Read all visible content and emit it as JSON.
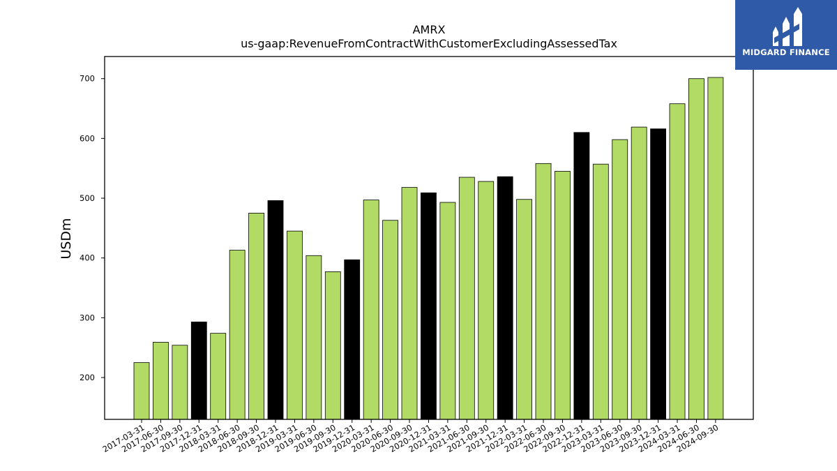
{
  "chart_data": {
    "type": "bar",
    "title": "AMRX",
    "subtitle": "us-gaap:RevenueFromContractWithCustomerExcludingAssessedTax",
    "xlabel": "",
    "ylabel": "USDm",
    "ylim": [
      130,
      737
    ],
    "yticks": [
      200,
      300,
      400,
      500,
      600,
      700
    ],
    "grid": false,
    "colors": {
      "regular": "#b2db66",
      "year_end": "#000000",
      "edge": "#000000"
    },
    "categories": [
      "2017-03-31",
      "2017-06-30",
      "2017-09-30",
      "2017-12-31",
      "2018-03-31",
      "2018-06-30",
      "2018-09-30",
      "2018-12-31",
      "2019-03-31",
      "2019-06-30",
      "2019-09-30",
      "2019-12-31",
      "2020-03-31",
      "2020-06-30",
      "2020-09-30",
      "2020-12-31",
      "2021-03-31",
      "2021-06-30",
      "2021-09-30",
      "2021-12-31",
      "2022-03-31",
      "2022-06-30",
      "2022-09-30",
      "2022-12-31",
      "2023-03-31",
      "2023-06-30",
      "2023-09-30",
      "2023-12-31",
      "2024-03-31",
      "2024-06-30",
      "2024-09-30"
    ],
    "values": [
      225,
      259,
      254,
      293,
      274,
      413,
      475,
      496,
      445,
      404,
      377,
      397,
      497,
      463,
      518,
      509,
      493,
      535,
      528,
      536,
      498,
      558,
      545,
      610,
      557,
      598,
      619,
      616,
      658,
      700,
      702
    ]
  },
  "logo": {
    "text": "MIDGARD FINANCE",
    "icon": "midgard-logo-icon"
  }
}
